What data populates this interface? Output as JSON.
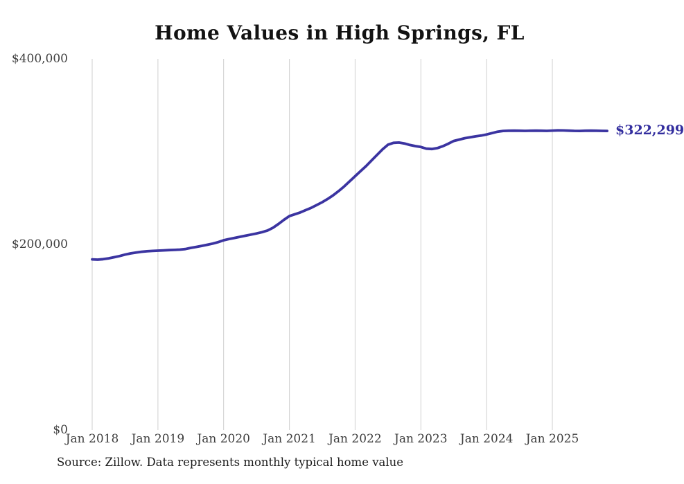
{
  "title": "Home Values in High Springs, FL",
  "end_label": "$322,299",
  "source": "Source: Zillow. Data represents monthly typical home value",
  "colors": {
    "line": "#3b34a1",
    "end_label_text": "#322d9e",
    "grid": "#cfcfcf",
    "axis_text": "#3e3e3e",
    "title_text": "#121212",
    "source_text": "#1d1d1d",
    "background": "#ffffff"
  },
  "chart_data": {
    "type": "line",
    "title": "Home Values in High Springs, FL",
    "xlabel": "",
    "ylabel": "",
    "x_unit": "month",
    "x_tick_labels": [
      "Jan 2018",
      "Jan 2019",
      "Jan 2020",
      "Jan 2021",
      "Jan 2022",
      "Jan 2023",
      "Jan 2024",
      "Jan 2025"
    ],
    "y_tick_labels": [
      "$0",
      "$200,000",
      "$400,000"
    ],
    "y_tick_values": [
      0,
      200000,
      400000
    ],
    "ylim": [
      0,
      400000
    ],
    "grid": "vertical-only",
    "legend": "none",
    "annotation": "$322,299",
    "final_value": 322299,
    "series": [
      {
        "name": "Typical home value",
        "start_month": "2018-01",
        "end_month": "2025-11",
        "values": [
          183900,
          183600,
          184100,
          185000,
          186200,
          187500,
          189000,
          190300,
          191300,
          192100,
          192600,
          193000,
          193300,
          193600,
          193900,
          194100,
          194400,
          195000,
          196300,
          197300,
          198400,
          199600,
          200900,
          202500,
          204500,
          205800,
          207000,
          208200,
          209400,
          210600,
          211800,
          213200,
          215000,
          218000,
          222000,
          226500,
          230500,
          232500,
          234500,
          237000,
          239500,
          242500,
          245500,
          249000,
          253000,
          257500,
          262500,
          268000,
          273500,
          279000,
          284500,
          290500,
          296500,
          302500,
          307500,
          309500,
          309800,
          308800,
          307200,
          306000,
          305000,
          303200,
          302800,
          303800,
          305800,
          308500,
          311500,
          313000,
          314500,
          315500,
          316500,
          317300,
          318500,
          320000,
          321500,
          322300,
          322500,
          322600,
          322500,
          322400,
          322500,
          322600,
          322500,
          322400,
          322700,
          322900,
          322800,
          322600,
          322400,
          322300,
          322500,
          322600,
          322500,
          322400,
          322299
        ]
      }
    ]
  }
}
